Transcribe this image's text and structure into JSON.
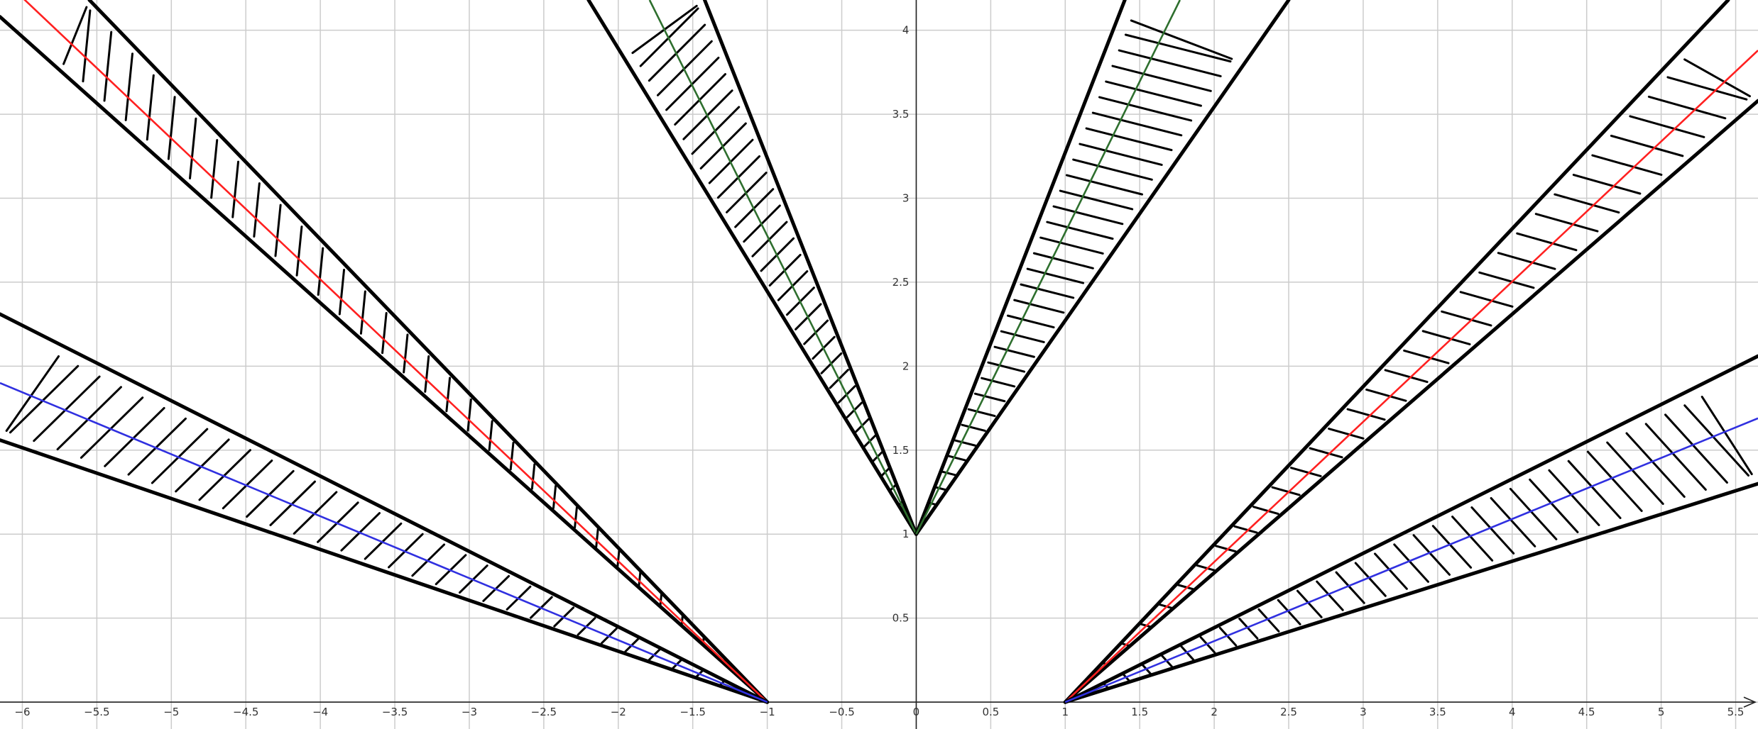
{
  "chart_data": {
    "type": "line",
    "title": "",
    "xlabel": "",
    "ylabel": "",
    "xlim": [
      -6.15,
      5.65
    ],
    "ylim": [
      -0.16,
      4.18
    ],
    "grid": true,
    "x_ticks": [
      -6,
      -5.5,
      -5,
      -4.5,
      -4,
      -3.5,
      -3,
      -2.5,
      -2,
      -1.5,
      -1,
      -0.5,
      0,
      0.5,
      1,
      1.5,
      2,
      2.5,
      3,
      3.5,
      4,
      4.5,
      5,
      5.5
    ],
    "x_tick_labels": [
      "−6",
      "−5.5",
      "−5",
      "−4.5",
      "−4",
      "−3.5",
      "−3",
      "−2.5",
      "−2",
      "−1.5",
      "−1",
      "−0.5",
      "0",
      "0.5",
      "1",
      "1.5",
      "2",
      "2.5",
      "3",
      "3.5",
      "4",
      "4.5",
      "5",
      "5.5"
    ],
    "y_ticks": [
      0.5,
      1,
      1.5,
      2,
      2.5,
      3,
      3.5,
      4
    ],
    "y_tick_labels": [
      "0.5",
      "1",
      "1.5",
      "2",
      "2.5",
      "3",
      "3.5",
      "4"
    ],
    "series": [
      {
        "color": "#2e6f2e",
        "points": [
          [
            -1.79,
            4.18
          ],
          [
            0,
            1
          ]
        ],
        "wedge": {
          "apex": [
            0,
            1
          ],
          "edge_a_far": [
            -2.2,
            4.18
          ],
          "edge_b_far": [
            -1.42,
            4.18
          ]
        }
      },
      {
        "color": "#2e6f2e",
        "points": [
          [
            0,
            1
          ],
          [
            1.77,
            4.18
          ]
        ],
        "wedge": {
          "apex": [
            0,
            1
          ],
          "edge_a_far": [
            1.4,
            4.18
          ],
          "edge_b_far": [
            2.5,
            4.18
          ]
        }
      },
      {
        "color": "#ff2020",
        "points": [
          [
            -6.15,
            4.32
          ],
          [
            -1,
            0
          ]
        ],
        "wedge": {
          "apex": [
            -1,
            0
          ],
          "edge_a_far": [
            -6.15,
            4.08
          ],
          "edge_b_far": [
            -5.55,
            4.18
          ]
        }
      },
      {
        "color": "#ff2020",
        "points": [
          [
            1,
            0
          ],
          [
            5.65,
            3.88
          ]
        ],
        "wedge": {
          "apex": [
            1,
            0
          ],
          "edge_a_far": [
            5.45,
            4.18
          ],
          "edge_b_far": [
            5.65,
            3.58
          ]
        }
      },
      {
        "color": "#3030e0",
        "points": [
          [
            -6.15,
            1.9
          ],
          [
            -1,
            0
          ]
        ],
        "wedge": {
          "apex": [
            -1,
            0
          ],
          "edge_a_far": [
            -6.15,
            2.31
          ],
          "edge_b_far": [
            -6.15,
            1.56
          ]
        }
      },
      {
        "color": "#3030e0",
        "points": [
          [
            1,
            0
          ],
          [
            5.65,
            1.69
          ]
        ],
        "wedge": {
          "apex": [
            1,
            0
          ],
          "edge_a_far": [
            5.65,
            2.06
          ],
          "edge_b_far": [
            5.65,
            1.3
          ]
        }
      }
    ]
  }
}
